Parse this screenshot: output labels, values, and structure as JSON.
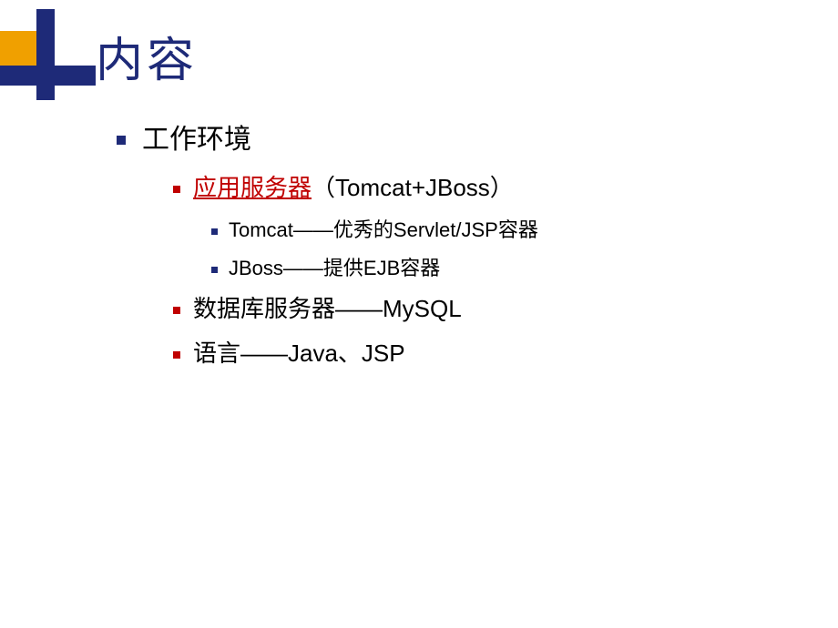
{
  "title": "内容",
  "colors": {
    "title_color": "#1e2a78",
    "bullet_primary": "#1e2a78",
    "bullet_accent": "#c00000",
    "link_color": "#c00000",
    "decoration_yellow": "#f0a000",
    "decoration_blue": "#1e2a78",
    "text_color": "#000000",
    "background": "#ffffff"
  },
  "typography": {
    "title_fontsize": 52,
    "level1_fontsize": 30,
    "level2_fontsize": 26,
    "level3_fontsize": 22
  },
  "content": {
    "level1": "工作环境",
    "level2_items": [
      {
        "link_text": "应用服务器",
        "suffix": "（Tomcat+JBoss）",
        "is_link": true,
        "children": [
          "Tomcat――优秀的Servlet/JSP容器",
          "JBoss――提供EJB容器"
        ]
      },
      {
        "text": "数据库服务器――MySQL",
        "is_link": false
      },
      {
        "text": "语言――Java、JSP",
        "is_link": false
      }
    ]
  }
}
